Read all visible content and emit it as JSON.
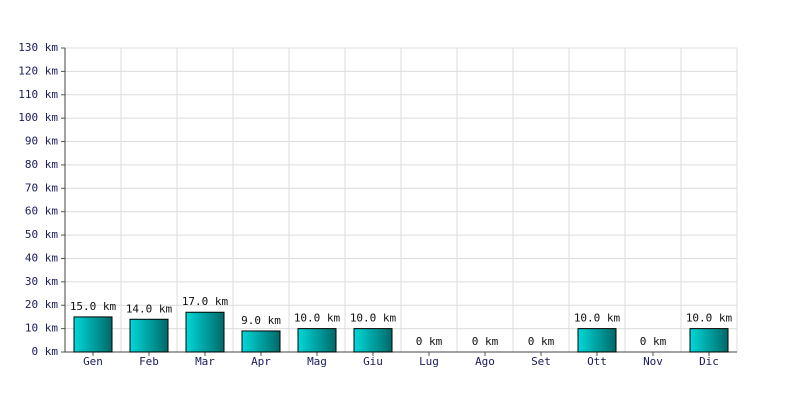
{
  "chart_data": {
    "type": "bar",
    "categories": [
      "Gen",
      "Feb",
      "Mar",
      "Apr",
      "Mag",
      "Giu",
      "Lug",
      "Ago",
      "Set",
      "Ott",
      "Nov",
      "Dic"
    ],
    "values": [
      15,
      14,
      17,
      9,
      10,
      10,
      0,
      0,
      0,
      10,
      0,
      10
    ],
    "value_labels": [
      "15.0 km",
      "14.0 km",
      "17.0 km",
      "9.0 km",
      "10.0 km",
      "10.0 km",
      "0 km",
      "0 km",
      "0 km",
      "10.0 km",
      "0 km",
      "10.0 km"
    ],
    "color": "#00d8d8",
    "ylim": [
      0,
      130
    ],
    "yticks": [
      {
        "value": 0,
        "label": "0 km"
      },
      {
        "value": 10,
        "label": "10 km"
      },
      {
        "value": 20,
        "label": "20 km"
      },
      {
        "value": 30,
        "label": "30 km"
      },
      {
        "value": 40,
        "label": "40 km"
      },
      {
        "value": 50,
        "label": "50 km"
      },
      {
        "value": 60,
        "label": "60 km"
      },
      {
        "value": 70,
        "label": "70 km"
      },
      {
        "value": 80,
        "label": "80 km"
      },
      {
        "value": 90,
        "label": "90 km"
      },
      {
        "value": 100,
        "label": "100 km"
      },
      {
        "value": 110,
        "label": "110 km"
      },
      {
        "value": 120,
        "label": "120 km"
      },
      {
        "value": 130,
        "label": "130 km"
      }
    ],
    "grid": true
  }
}
